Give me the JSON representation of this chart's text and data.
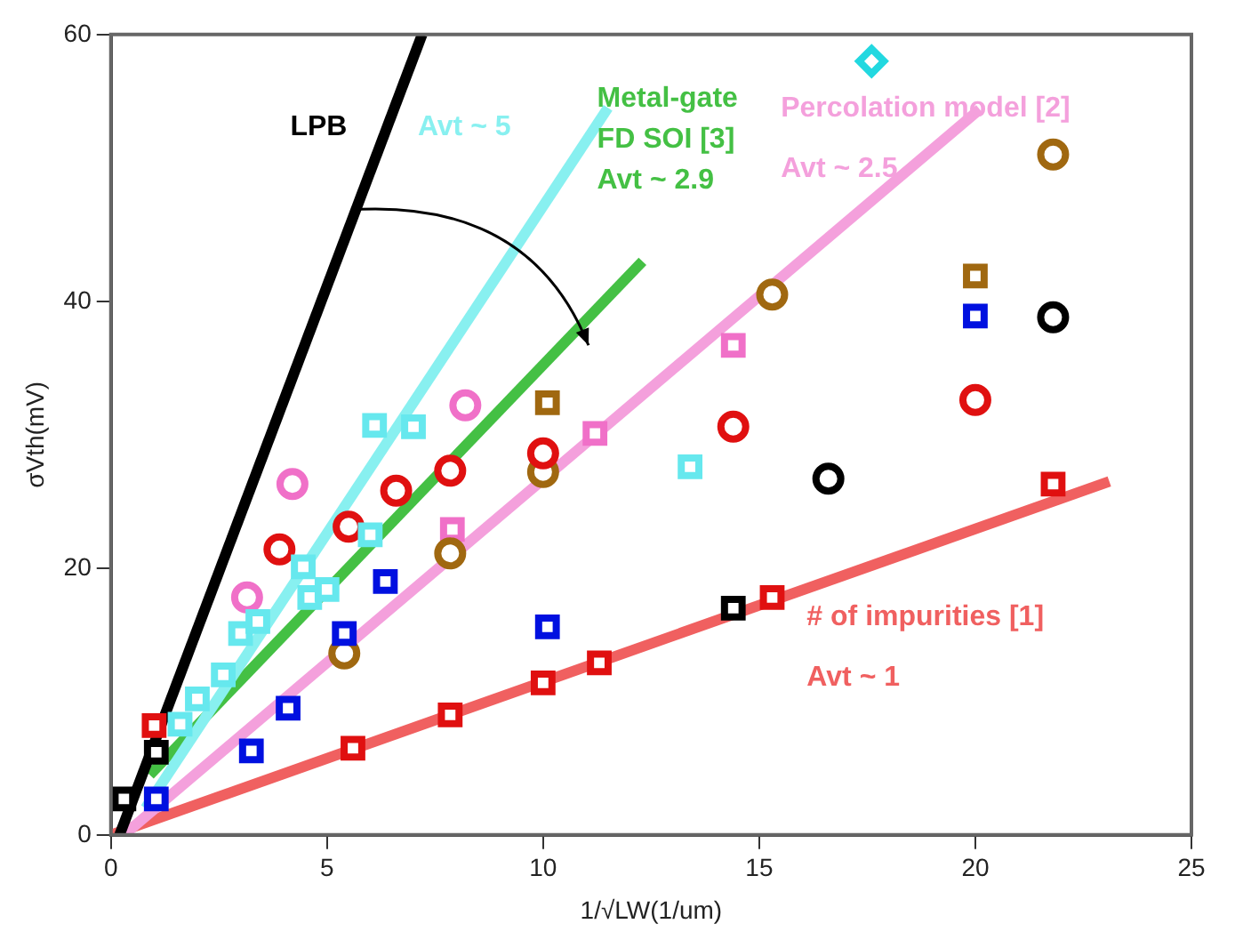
{
  "chart_data": {
    "type": "scatter",
    "xlabel": "1/√LW(1/um)",
    "ylabel": "σVth(mV)",
    "xlim": [
      0,
      25
    ],
    "ylim": [
      0,
      60
    ],
    "xticks": [
      0,
      5,
      10,
      15,
      20,
      25
    ],
    "yticks": [
      0,
      20,
      40,
      60
    ],
    "grid": false,
    "legend": false,
    "series": [
      {
        "type": "line",
        "name": "LPB",
        "color": "#000000",
        "x": [
          0.2,
          7.2
        ],
        "values": [
          0,
          60
        ]
      },
      {
        "type": "line",
        "name": "Avt ~ 5",
        "color": "#88f0f0",
        "x": [
          0.8,
          11.5
        ],
        "values": [
          2,
          54.5
        ]
      },
      {
        "type": "line",
        "name": "Percolation model [2]\nAvt ~ 2.5",
        "color": "#f4a0dc",
        "x": [
          0.3,
          20.1
        ],
        "values": [
          0,
          54.4
        ]
      },
      {
        "type": "line",
        "name": "# of impurities [1]\nAvt ~ 1",
        "color": "#f06060",
        "x": [
          0,
          23.1
        ],
        "values": [
          0,
          26.5
        ]
      },
      {
        "type": "line",
        "name": "Metal-gate\nFD SOI [3]\nAvt ~ 2.9",
        "color": "#44c044",
        "x": [
          0.9,
          12.3
        ],
        "values": [
          4.5,
          43
        ]
      },
      {
        "marker": "square",
        "color": "#66e8ee",
        "x": [
          1.6,
          2.0,
          2.6,
          3.0,
          3.4,
          4.45,
          4.6,
          5.0,
          6.0,
          6.1,
          7.0
        ],
        "values": [
          8.3,
          10.2,
          12.0,
          15.1,
          16.0,
          20.1,
          17.8,
          18.4,
          22.5,
          30.7,
          30.6
        ]
      },
      {
        "marker": "square",
        "color": "#e01010",
        "x": [
          1.0,
          5.6,
          7.85,
          10.0,
          11.3,
          15.3,
          21.8
        ],
        "values": [
          8.2,
          6.5,
          9.0,
          11.4,
          12.9,
          17.8,
          26.3
        ]
      },
      {
        "marker": "square",
        "color": "#000000",
        "x": [
          0.3,
          1.05
        ],
        "values": [
          2.7,
          6.2
        ]
      },
      {
        "marker": "square",
        "color": "#0010e0",
        "x": [
          1.05,
          3.25,
          4.1,
          5.4,
          6.35
        ],
        "values": [
          2.7,
          6.3,
          9.5,
          15.1,
          19.0
        ]
      },
      {
        "marker": "circle",
        "color": "#f070c8",
        "x": [
          3.15,
          4.2,
          8.2
        ],
        "values": [
          17.8,
          26.3,
          32.2
        ]
      },
      {
        "marker": "circle",
        "color": "#e01010",
        "x": [
          3.9,
          5.5,
          6.6,
          7.85,
          10.0,
          14.4,
          20.0
        ],
        "values": [
          21.4,
          23.1,
          25.8,
          27.3,
          28.6,
          30.6,
          32.6
        ]
      },
      {
        "marker": "circle",
        "color": "#a06810",
        "x": [
          5.4,
          7.85,
          10.0,
          15.3,
          21.8
        ],
        "values": [
          13.6,
          21.1,
          27.2,
          40.5,
          51.0
        ]
      },
      {
        "marker": "square",
        "color": "#f070c8",
        "x": [
          7.9,
          11.2,
          14.4
        ],
        "values": [
          22.9,
          30.1,
          36.7
        ]
      },
      {
        "marker": "square",
        "color": "#a06810",
        "x": [
          10.1,
          20.0
        ],
        "values": [
          32.4,
          41.9
        ]
      },
      {
        "marker": "square",
        "color": "#0010e0",
        "x": [
          10.1,
          20.0
        ],
        "values": [
          15.6,
          38.9
        ]
      },
      {
        "marker": "square",
        "color": "#000000",
        "x": [
          14.4
        ],
        "values": [
          17.0
        ]
      },
      {
        "marker": "circle",
        "color": "#000000",
        "x": [
          16.6,
          21.8
        ],
        "values": [
          26.7,
          38.8
        ]
      },
      {
        "marker": "square",
        "color": "#66e8ee",
        "x": [
          13.4
        ],
        "values": [
          27.6
        ]
      },
      {
        "marker": "diamond",
        "color": "#22d8e0",
        "x": [
          17.6
        ],
        "values": [
          58.0
        ]
      }
    ]
  }
}
